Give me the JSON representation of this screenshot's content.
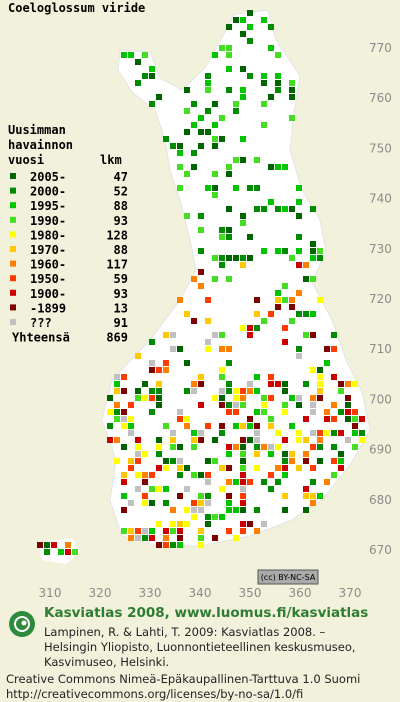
{
  "title": "Coeloglossum viride",
  "legend": {
    "heading": [
      "Uusimman",
      "havainnon"
    ],
    "col1": "vuosi",
    "col2": "lkm",
    "rows": [
      {
        "period": "2005-",
        "count": 47,
        "color": "#006400"
      },
      {
        "period": "2000-",
        "count": 52,
        "color": "#008c00"
      },
      {
        "period": "1995-",
        "count": 88,
        "color": "#00c400"
      },
      {
        "period": "1990-",
        "count": 93,
        "color": "#44dd22"
      },
      {
        "period": "1980-",
        "count": 128,
        "color": "#ffff00"
      },
      {
        "period": "1970-",
        "count": 88,
        "color": "#ffc800"
      },
      {
        "period": "1960-",
        "count": 117,
        "color": "#ff8000"
      },
      {
        "period": "1950-",
        "count": 59,
        "color": "#ff3c00"
      },
      {
        "period": "1900-",
        "count": 93,
        "color": "#cc0000"
      },
      {
        "period": "-1899",
        "count": 13,
        "color": "#800000"
      },
      {
        "period": "???",
        "count": 91,
        "color": "#c0c0c0"
      }
    ],
    "total": {
      "label": "Yhteensä",
      "count": 869
    }
  },
  "map": {
    "y_labels": [
      770,
      760,
      750,
      740,
      730,
      720,
      710,
      700,
      690,
      680,
      670
    ],
    "x_labels": [
      310,
      320,
      330,
      340,
      350,
      360,
      370
    ]
  },
  "badge": "(cc) BY-NC-SA",
  "footer": {
    "brand": "Kasviatlas 2008, www.luomus.fi/kasviatlas",
    "citation": [
      "Lampinen, R. & Lahti, T. 2009: Kasviatlas 2008. –",
      "Helsingin Yliopisto, Luonnontieteellinen keskusmuseo,",
      "Kasvimuseo, Helsinki."
    ],
    "license": [
      "Creative Commons Nimeä-Epäkaupallinen-Tarttuva 1.0 Suomi",
      "http://creativecommons.org/licenses/by-no-sa/1.0/fi"
    ]
  }
}
